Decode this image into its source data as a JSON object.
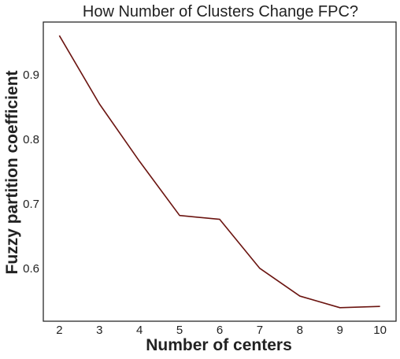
{
  "chart_data": {
    "type": "line",
    "title": "How Number of Clusters Change FPC?",
    "xlabel": "Number of centers",
    "ylabel": "Fuzzy partition coefficient",
    "x": [
      2,
      3,
      4,
      5,
      6,
      7,
      8,
      9,
      10
    ],
    "series": [
      {
        "values": [
          0.961,
          0.855,
          0.766,
          0.682,
          0.676,
          0.6,
          0.557,
          0.539,
          0.541
        ],
        "color": "#6b1410"
      }
    ],
    "xticks": [
      "2",
      "3",
      "4",
      "5",
      "6",
      "7",
      "8",
      "9",
      "10"
    ],
    "yticks": [
      "0.6",
      "0.7",
      "0.8",
      "0.9"
    ],
    "ytick_values": [
      0.6,
      0.7,
      0.8,
      0.9
    ],
    "xlim": [
      1.6,
      10.4
    ],
    "ylim": [
      0.518,
      0.982
    ],
    "grid": false,
    "legend": "none"
  }
}
